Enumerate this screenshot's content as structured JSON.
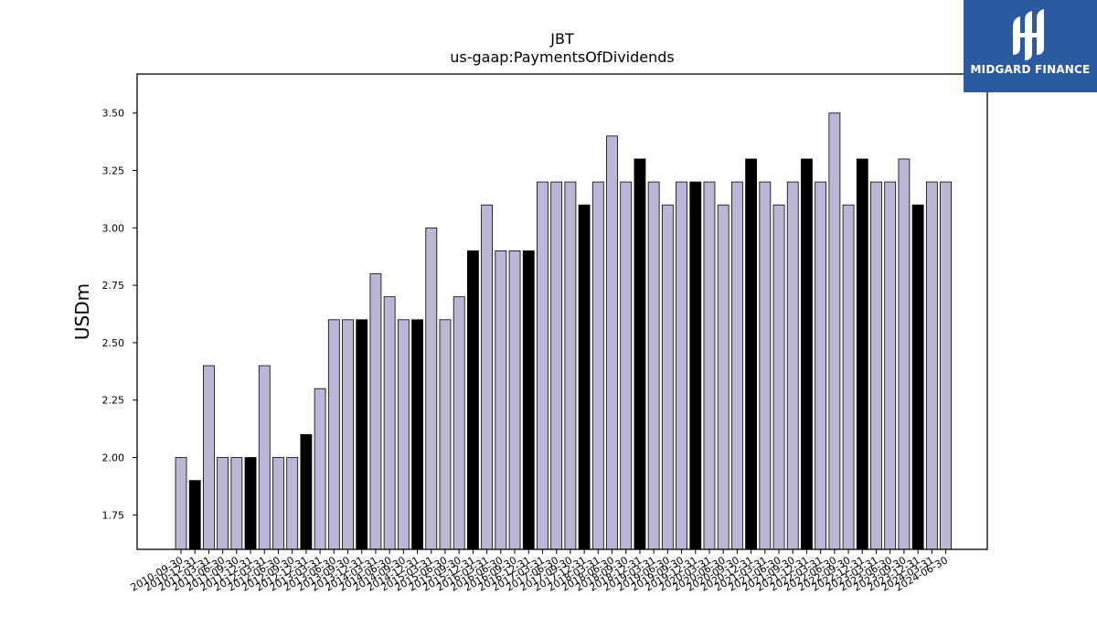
{
  "logo": {
    "brand": "MIDGARD FINANCE",
    "icon": "midgard-logo-icon"
  },
  "colors": {
    "accent": "#bab6d6",
    "highlight": "#000000",
    "logo_bg": "#2c5aa0"
  },
  "chart_data": {
    "type": "bar",
    "title": "JBT",
    "subtitle": "us-gaap:PaymentsOfDividends",
    "ylabel": "USDm",
    "xlabel": "",
    "ylim": [
      1.6,
      3.67
    ],
    "yticks": [
      1.75,
      2.0,
      2.25,
      2.5,
      2.75,
      3.0,
      3.25,
      3.5
    ],
    "ytick_labels": [
      "1.75",
      "2.00",
      "2.25",
      "2.50",
      "2.75",
      "3.00",
      "3.25",
      "3.50"
    ],
    "categories": [
      "2010-09-30",
      "2010-12-31",
      "2011-03-31",
      "2011-06-30",
      "2011-09-30",
      "2011-12-31",
      "2012-03-31",
      "2012-06-30",
      "2012-09-30",
      "2012-12-31",
      "2013-03-31",
      "2013-06-30",
      "2013-09-30",
      "2013-12-31",
      "2014-03-31",
      "2014-06-30",
      "2014-09-30",
      "2014-12-31",
      "2015-03-31",
      "2015-06-30",
      "2015-09-30",
      "2015-12-31",
      "2016-03-31",
      "2016-06-30",
      "2016-09-30",
      "2016-12-31",
      "2017-03-31",
      "2017-06-30",
      "2017-09-30",
      "2017-12-31",
      "2018-03-31",
      "2018-06-30",
      "2018-09-30",
      "2018-12-31",
      "2019-03-31",
      "2019-06-30",
      "2019-09-30",
      "2019-12-31",
      "2020-03-31",
      "2020-06-30",
      "2020-09-30",
      "2020-12-31",
      "2021-03-31",
      "2021-06-30",
      "2021-09-30",
      "2021-12-31",
      "2022-03-31",
      "2022-06-30",
      "2022-09-30",
      "2022-12-31",
      "2023-03-31",
      "2023-06-30",
      "2023-09-30",
      "2023-12-31",
      "2024-03-31",
      "2024-06-30"
    ],
    "values": [
      2.0,
      1.9,
      2.4,
      2.0,
      2.0,
      2.0,
      2.4,
      2.0,
      2.0,
      2.1,
      2.3,
      2.6,
      2.6,
      2.6,
      2.8,
      2.7,
      2.6,
      2.6,
      3.0,
      2.6,
      2.7,
      2.9,
      3.1,
      2.9,
      2.9,
      2.9,
      3.2,
      3.2,
      3.2,
      3.1,
      3.2,
      3.4,
      3.2,
      3.3,
      3.2,
      3.1,
      3.2,
      3.2,
      3.2,
      3.1,
      3.2,
      3.3,
      3.2,
      3.1,
      3.2,
      3.3,
      3.2,
      3.5,
      3.1,
      3.3,
      3.2,
      3.2,
      3.3,
      3.1,
      3.2,
      3.2
    ],
    "highlight": [
      false,
      true,
      false,
      false,
      false,
      true,
      false,
      false,
      false,
      true,
      false,
      false,
      false,
      true,
      false,
      false,
      false,
      true,
      false,
      false,
      false,
      true,
      false,
      false,
      false,
      true,
      false,
      false,
      false,
      true,
      false,
      false,
      false,
      true,
      false,
      false,
      false,
      true,
      false,
      false,
      false,
      true,
      false,
      false,
      false,
      true,
      false,
      false,
      false,
      true,
      false,
      false,
      false,
      true,
      false,
      false
    ],
    "grid": false,
    "legend": "none"
  }
}
